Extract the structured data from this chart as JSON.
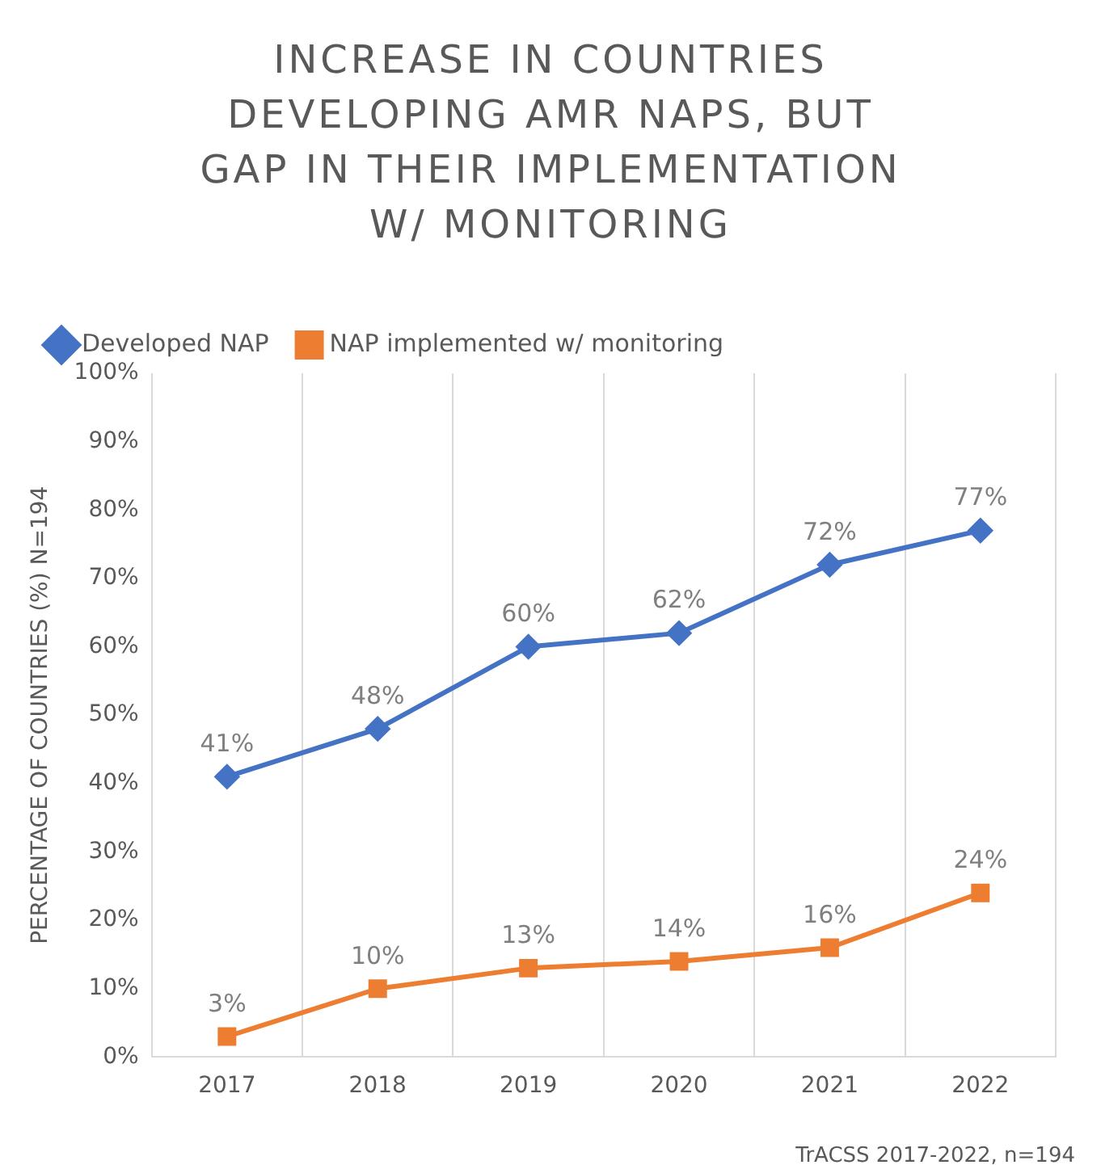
{
  "chart_data": {
    "type": "line",
    "title": "INCREASE IN COUNTRIES DEVELOPING AMR NAPS, BUT GAP IN THEIR IMPLEMENTATION W/ MONITORING",
    "ylabel": "PERCENTAGE OF COUNTRIES (%) N=194",
    "annotations": [
      "TrACSS 2017-2022, n=194"
    ],
    "categories": [
      "2017",
      "2018",
      "2019",
      "2020",
      "2021",
      "2022"
    ],
    "series": [
      {
        "name": "Developed NAP",
        "color": "#4472c4",
        "marker": "diamond",
        "values": [
          41,
          48,
          60,
          62,
          72,
          77
        ],
        "value_labels": [
          "41%",
          "48%",
          "60%",
          "62%",
          "72%",
          "77%"
        ]
      },
      {
        "name": "NAP implemented w/ monitoring",
        "color": "#ed7d31",
        "marker": "square",
        "values": [
          3,
          10,
          13,
          14,
          16,
          24
        ],
        "value_labels": [
          "3%",
          "10%",
          "13%",
          "14%",
          "16%",
          "24%"
        ]
      }
    ],
    "ylim": [
      0,
      100
    ],
    "yticks": [
      {
        "value": 0,
        "label": "0%"
      },
      {
        "value": 10,
        "label": "10%"
      },
      {
        "value": 20,
        "label": "20%"
      },
      {
        "value": 30,
        "label": "30%"
      },
      {
        "value": 40,
        "label": "40%"
      },
      {
        "value": 50,
        "label": "50%"
      },
      {
        "value": 60,
        "label": "60%"
      },
      {
        "value": 70,
        "label": "70%"
      },
      {
        "value": 80,
        "label": "80%"
      },
      {
        "value": 90,
        "label": "90%"
      },
      {
        "value": 100,
        "label": "100%"
      }
    ],
    "grid": "x",
    "legend": "top left",
    "line_style": "solid"
  }
}
